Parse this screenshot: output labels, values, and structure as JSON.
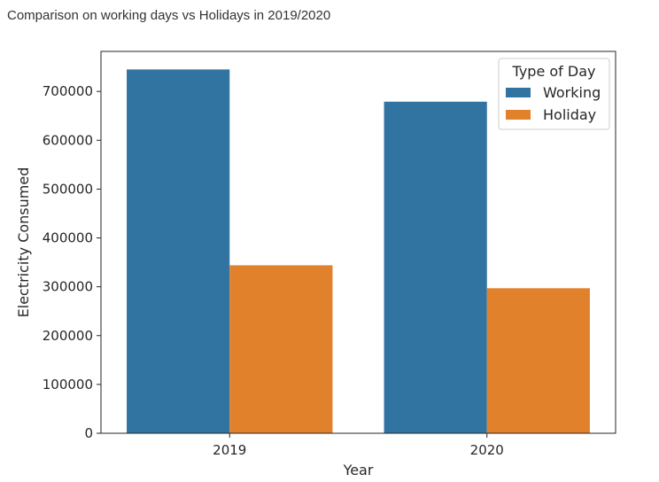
{
  "page_title": "Comparison on working days vs Holidays in 2019/2020",
  "colors": {
    "Working": "#3274a1",
    "Holiday": "#e1812c"
  },
  "chart_data": {
    "type": "bar",
    "categories": [
      "2019",
      "2020"
    ],
    "series": [
      {
        "name": "Working",
        "values": [
          745000,
          679000
        ]
      },
      {
        "name": "Holiday",
        "values": [
          344000,
          297000
        ]
      }
    ],
    "title": "",
    "xlabel": "Year",
    "ylabel": "Electricity Consumed",
    "ylim": [
      0,
      782000
    ],
    "yticks": [
      0,
      100000,
      200000,
      300000,
      400000,
      500000,
      600000,
      700000
    ],
    "legend": {
      "title": "Type of Day",
      "entries": [
        "Working",
        "Holiday"
      ],
      "position": "top-right"
    },
    "grid": false
  }
}
